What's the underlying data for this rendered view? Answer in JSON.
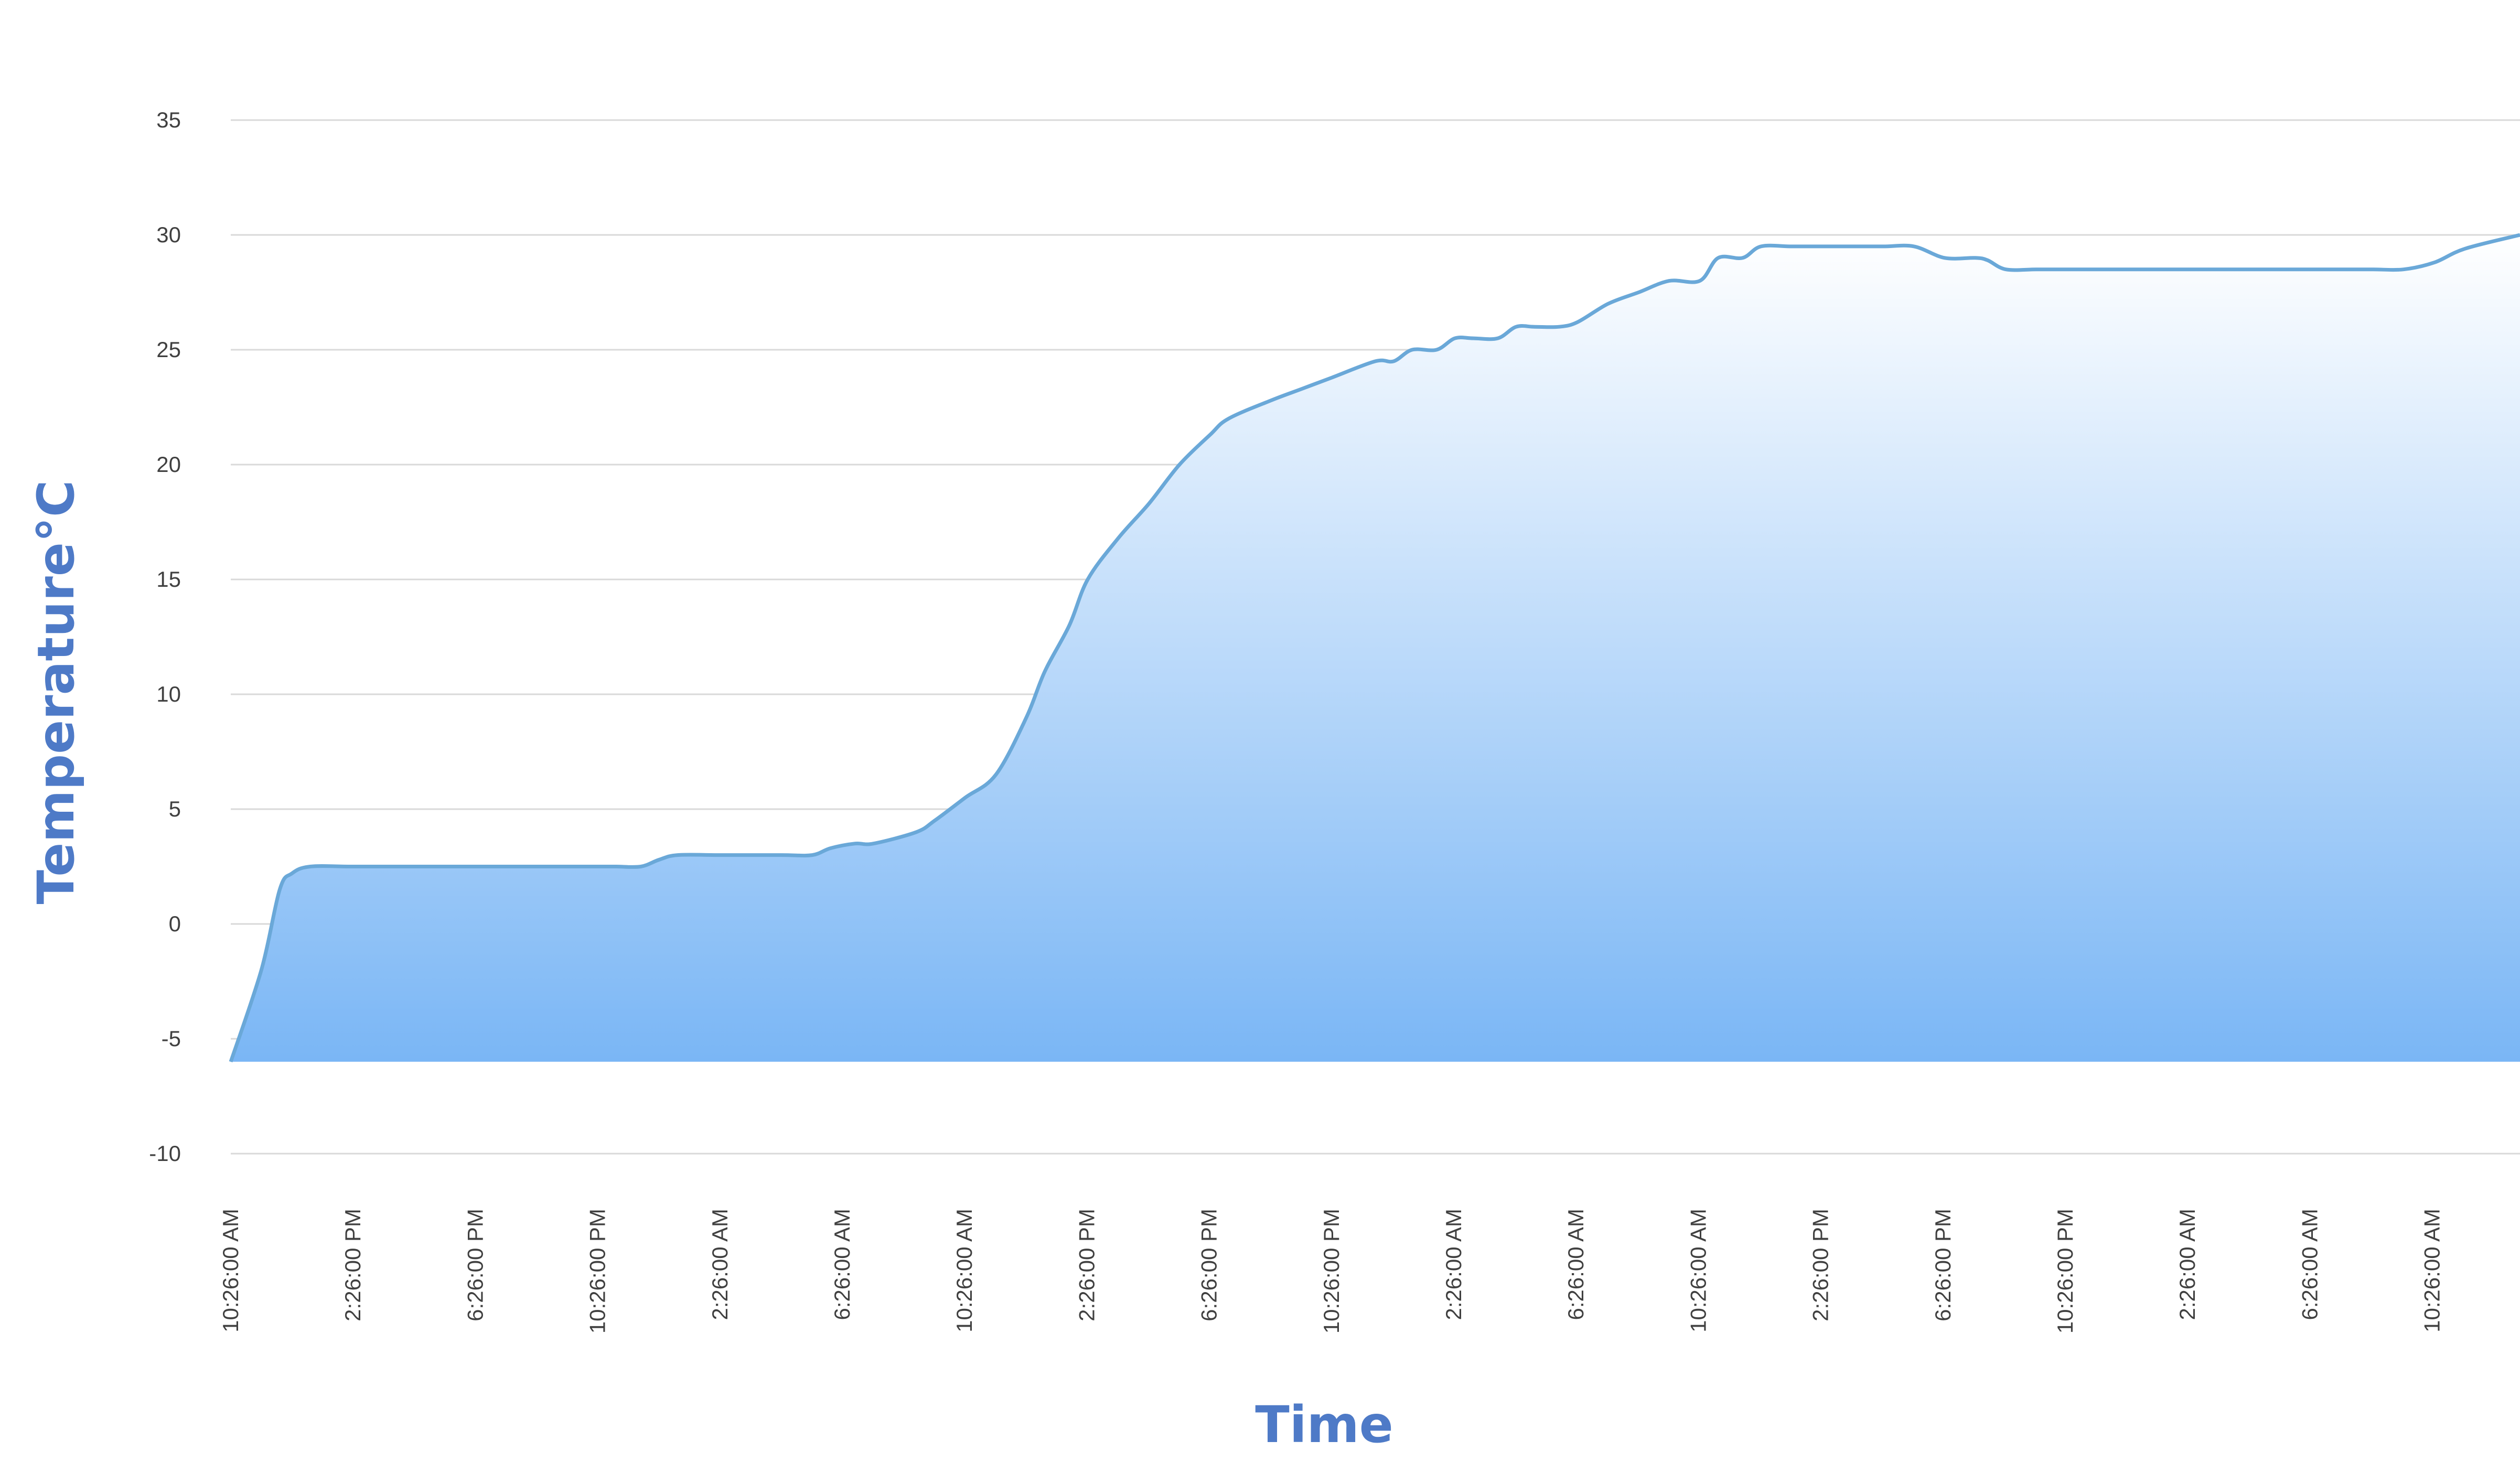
{
  "chart_data": {
    "type": "area",
    "title": "",
    "xlabel": "Time",
    "ylabel": "Temperature°C",
    "ylim": [
      -10,
      35
    ],
    "y_ticks": [
      -10,
      -5,
      0,
      5,
      10,
      15,
      20,
      25,
      30,
      35
    ],
    "x_tick_labels": [
      "10:26:00 AM",
      "2:26:00 PM",
      "6:26:00 PM",
      "10:26:00 PM",
      "2:26:00 AM",
      "6:26:00 AM",
      "10:26:00 AM",
      "2:26:00 PM",
      "6:26:00 PM",
      "10:26:00 PM",
      "2:26:00 AM",
      "6:26:00 AM",
      "10:26:00 AM",
      "2:26:00 PM",
      "6:26:00 PM",
      "10:26:00 PM",
      "2:26:00 AM",
      "6:26:00 AM",
      "10:26:00 AM"
    ],
    "x_hours_elapsed_range": [
      0,
      74.8
    ],
    "grid": true,
    "legend": "none",
    "colors": {
      "line": "#6aa8d8",
      "fill_top": "#ffffff",
      "fill_bottom": "#7ab6f5",
      "axis_title": "#4e7ac7"
    },
    "series": [
      {
        "x": [
          0,
          1,
          1.6,
          2,
          2.6,
          4,
          6,
          8,
          10,
          12,
          12.6,
          13.4,
          14,
          14.6,
          16,
          18,
          19,
          19.6,
          20.4,
          21,
          22.4,
          23,
          24,
          25,
          26,
          26.6,
          27.4,
          28,
          29,
          30,
          31,
          32,
          32.6,
          34,
          35,
          36,
          37.4,
          38,
          38.6,
          39.4,
          40,
          40.6,
          41.4,
          42,
          42.6,
          43.4,
          44,
          45,
          46,
          47,
          48,
          48.6,
          49.4,
          50,
          51,
          52,
          53,
          54,
          55,
          56,
          57,
          57.4,
          58,
          59,
          60,
          61,
          62,
          63,
          64,
          65,
          66,
          67,
          68,
          69,
          70,
          71,
          72,
          73,
          74.8
        ],
        "y": [
          -6,
          -2,
          1.5,
          2.2,
          2.5,
          2.5,
          2.5,
          2.5,
          2.5,
          2.5,
          2.5,
          2.5,
          2.8,
          3,
          3,
          3,
          3,
          3.3,
          3.5,
          3.5,
          4,
          4.5,
          5.5,
          6.5,
          9,
          11,
          13,
          15,
          16.8,
          18.3,
          20,
          21.3,
          22,
          22.8,
          23.3,
          23.8,
          24.5,
          24.5,
          25,
          25,
          25.5,
          25.5,
          25.5,
          26,
          26,
          26,
          26.2,
          27,
          27.5,
          28,
          28,
          29,
          29,
          29.5,
          29.5,
          29.5,
          29.5,
          29.5,
          29.5,
          29,
          29,
          28.9,
          28.5,
          28.5,
          28.5,
          28.5,
          28.5,
          28.5,
          28.5,
          28.5,
          28.5,
          28.5,
          28.5,
          28.5,
          28.5,
          28.5,
          28.8,
          29.4,
          30
        ]
      }
    ]
  }
}
